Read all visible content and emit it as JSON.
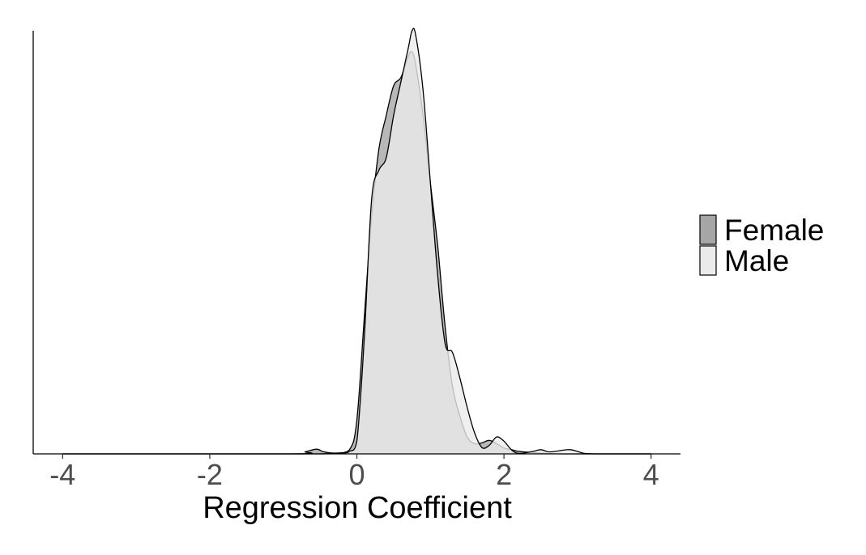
{
  "chart_data": {
    "type": "area",
    "subtype": "density",
    "title": "",
    "xlabel": "Regression Coefficient",
    "ylabel": "",
    "xlim": [
      -4.4,
      4.4
    ],
    "ylim": [
      0,
      1.0
    ],
    "x_ticks": [
      "-4",
      "-2",
      "0",
      "2",
      "4"
    ],
    "grid": false,
    "legend_position": "right",
    "colors": {
      "Female": "#a6a6a6",
      "Male": "#ebebeb",
      "outline": "#000000"
    },
    "series": [
      {
        "name": "Female",
        "x": [
          -4.0,
          -0.9,
          -0.7,
          -0.55,
          -0.45,
          -0.3,
          -0.1,
          0.0,
          0.1,
          0.2,
          0.3,
          0.4,
          0.5,
          0.6,
          0.7,
          0.75,
          0.8,
          0.9,
          1.0,
          1.1,
          1.2,
          1.3,
          1.4,
          1.5,
          1.6,
          1.7,
          1.8,
          1.9,
          2.0,
          2.1,
          2.2,
          2.4,
          2.6,
          2.8,
          3.0,
          3.2,
          4.0
        ],
        "y": [
          0,
          0,
          0.005,
          0.011,
          0.005,
          0.002,
          0.01,
          0.08,
          0.32,
          0.56,
          0.72,
          0.8,
          0.87,
          0.89,
          0.94,
          0.95,
          0.92,
          0.8,
          0.64,
          0.49,
          0.3,
          0.16,
          0.09,
          0.04,
          0.024,
          0.026,
          0.032,
          0.024,
          0.014,
          0.01,
          0.006,
          0.003,
          0.001,
          0,
          0,
          0,
          0
        ]
      },
      {
        "name": "Male",
        "x": [
          -4.0,
          -0.9,
          -0.7,
          -0.5,
          -0.2,
          -0.1,
          0.0,
          0.1,
          0.2,
          0.3,
          0.4,
          0.5,
          0.6,
          0.7,
          0.75,
          0.8,
          0.9,
          1.0,
          1.1,
          1.2,
          1.3,
          1.4,
          1.5,
          1.6,
          1.7,
          1.8,
          1.9,
          2.0,
          2.1,
          2.2,
          2.4,
          2.5,
          2.6,
          2.7,
          2.9,
          3.1,
          3.3,
          4.0
        ],
        "y": [
          0,
          0,
          0,
          0,
          0.002,
          0.006,
          0.03,
          0.27,
          0.6,
          0.67,
          0.7,
          0.8,
          0.88,
          0.96,
          1.0,
          0.99,
          0.86,
          0.64,
          0.42,
          0.26,
          0.24,
          0.18,
          0.11,
          0.05,
          0.015,
          0.02,
          0.04,
          0.03,
          0.01,
          0.001,
          0.006,
          0.01,
          0.005,
          0.006,
          0.01,
          0.001,
          0,
          0
        ]
      }
    ]
  }
}
